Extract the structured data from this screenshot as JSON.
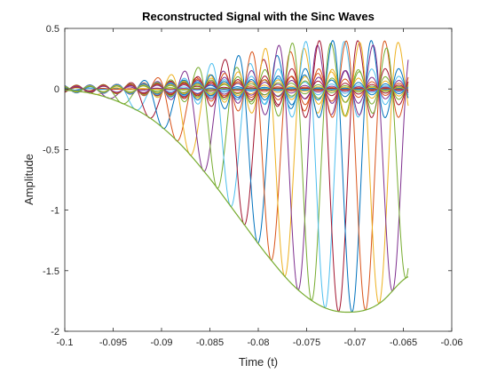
{
  "chart_data": {
    "type": "line",
    "title": "Reconstructed Signal with the Sinc Waves",
    "xlabel": "Time (t)",
    "ylabel": "Amplitude",
    "xlim": [
      -0.1,
      -0.06
    ],
    "ylim": [
      -2,
      0.5
    ],
    "x_ticks": [
      "-0.1",
      "-0.095",
      "-0.09",
      "-0.085",
      "-0.08",
      "-0.075",
      "-0.07",
      "-0.065",
      "-0.06"
    ],
    "y_ticks": [
      "-2",
      "-1.5",
      "-1",
      "-0.5",
      "0",
      "0.5"
    ],
    "grid": false,
    "legend": "none",
    "data_x_range": [
      -0.1,
      -0.0645
    ],
    "reconstructed_signal": {
      "x": [
        -0.1,
        -0.097,
        -0.094,
        -0.091,
        -0.088,
        -0.085,
        -0.082,
        -0.079,
        -0.076,
        -0.073,
        -0.07,
        -0.0675,
        -0.0645
      ],
      "y": [
        -0.01,
        -0.04,
        -0.12,
        -0.25,
        -0.46,
        -0.74,
        -1.06,
        -1.38,
        -1.65,
        -1.81,
        -1.84,
        -1.77,
        -1.55
      ]
    },
    "sinc_waves": {
      "count": 26,
      "sample_spacing": 0.00139,
      "first_center": -0.0995,
      "colors": [
        "#0072bd",
        "#d95319",
        "#edb120",
        "#7e2f8e",
        "#77ac30",
        "#4dbeee",
        "#a2142f"
      ]
    }
  }
}
